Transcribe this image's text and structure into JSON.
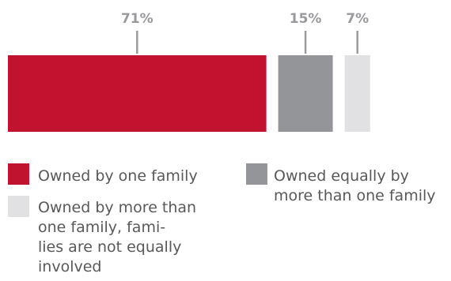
{
  "chart_data": {
    "type": "bar",
    "orientation": "horizontal-stacked",
    "title": "",
    "xlabel": "",
    "ylabel": "",
    "categories": [
      "Owned by one family",
      "Owned equally by more than one family",
      "Owned by more than one family, families are not equally involved"
    ],
    "values": [
      71,
      15,
      7
    ],
    "value_labels": [
      "71%",
      "15%",
      "7%"
    ],
    "colors": [
      "#c1122f",
      "#939598",
      "#e1e1e3"
    ],
    "legend": {
      "placement": "bottom",
      "entries": [
        {
          "lines": [
            "Owned by one family"
          ],
          "color": "#c1122f"
        },
        {
          "lines": [
            "Owned equally by",
            "more than one family"
          ],
          "color": "#939598"
        },
        {
          "lines": [
            "Owned by more than",
            "one family, fami-",
            "lies are not equally",
            "involved"
          ],
          "color": "#e1e1e3"
        }
      ]
    },
    "grid": false,
    "gap_color": "#ffffff",
    "label_color": "#999a9d",
    "connector_color": "#999a9d",
    "legend_text_color": "#58595b"
  }
}
